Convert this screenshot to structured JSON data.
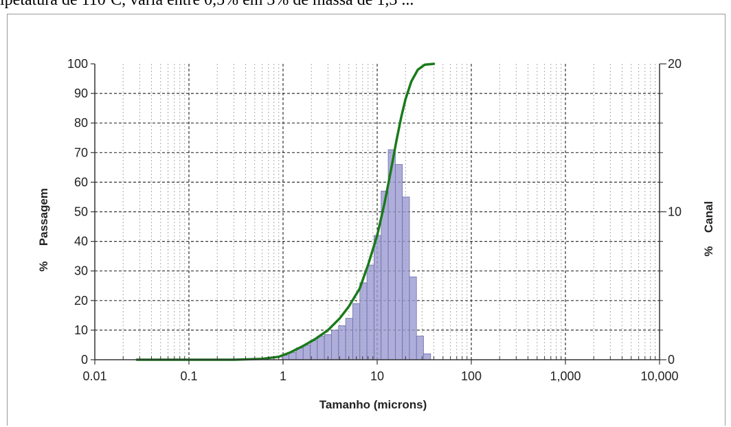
{
  "caption": "ipetatura de 110ºC, varia entre 0,5% em 3% de massa de 1,3 ...",
  "chart_data": {
    "type": "bar",
    "xscale": "log",
    "xlim": [
      0.01,
      10000
    ],
    "x_ticks": [
      "0.01",
      "0.1",
      "1",
      "10",
      "100",
      "1,000",
      "10,000"
    ],
    "xlabel": "Tamanho (microns)",
    "grid": true,
    "left_axis": {
      "label": "Passagem",
      "marker": "%",
      "marker_color": "#2a8a2a",
      "ylim": [
        0,
        100
      ],
      "ticks": [
        "0",
        "10",
        "20",
        "30",
        "40",
        "50",
        "60",
        "70",
        "80",
        "90",
        "100"
      ]
    },
    "right_axis": {
      "label": "Canal",
      "marker": "%",
      "marker_color": "#5a5aa8",
      "ylim": [
        0,
        20
      ],
      "ticks": [
        "0",
        "10",
        "20"
      ]
    },
    "series": [
      {
        "type": "bar",
        "axis": "right",
        "color": "#9a9ad0",
        "points": [
          {
            "x": 1.06,
            "y": 0.3
          },
          {
            "x": 1.26,
            "y": 0.5
          },
          {
            "x": 1.5,
            "y": 0.8
          },
          {
            "x": 1.78,
            "y": 1.0
          },
          {
            "x": 2.12,
            "y": 1.3
          },
          {
            "x": 2.52,
            "y": 1.6
          },
          {
            "x": 3.0,
            "y": 1.7
          },
          {
            "x": 3.56,
            "y": 2.0
          },
          {
            "x": 4.24,
            "y": 2.3
          },
          {
            "x": 5.04,
            "y": 2.8
          },
          {
            "x": 6.0,
            "y": 3.8
          },
          {
            "x": 7.14,
            "y": 5.2
          },
          {
            "x": 8.48,
            "y": 6.4
          },
          {
            "x": 10.1,
            "y": 8.4
          },
          {
            "x": 12.0,
            "y": 11.4
          },
          {
            "x": 14.3,
            "y": 14.2
          },
          {
            "x": 17.0,
            "y": 13.2
          },
          {
            "x": 20.2,
            "y": 11.0
          },
          {
            "x": 24.0,
            "y": 5.6
          },
          {
            "x": 28.5,
            "y": 1.6
          },
          {
            "x": 33.9,
            "y": 0.4
          }
        ]
      },
      {
        "type": "line",
        "axis": "left",
        "color": "#1a7a1a",
        "points": [
          {
            "x": 0.028,
            "y": 0
          },
          {
            "x": 0.1,
            "y": 0
          },
          {
            "x": 0.3,
            "y": 0
          },
          {
            "x": 0.6,
            "y": 0.3
          },
          {
            "x": 0.9,
            "y": 1
          },
          {
            "x": 1.2,
            "y": 2.5
          },
          {
            "x": 1.6,
            "y": 4.5
          },
          {
            "x": 2.2,
            "y": 7
          },
          {
            "x": 3.0,
            "y": 10
          },
          {
            "x": 4.0,
            "y": 14
          },
          {
            "x": 5.0,
            "y": 18
          },
          {
            "x": 6.5,
            "y": 24
          },
          {
            "x": 8.0,
            "y": 32
          },
          {
            "x": 10.0,
            "y": 42
          },
          {
            "x": 12.0,
            "y": 53
          },
          {
            "x": 14.0,
            "y": 64
          },
          {
            "x": 16.0,
            "y": 74
          },
          {
            "x": 18.0,
            "y": 82
          },
          {
            "x": 20.0,
            "y": 88
          },
          {
            "x": 23.0,
            "y": 94
          },
          {
            "x": 27.0,
            "y": 98
          },
          {
            "x": 32.0,
            "y": 99.7
          },
          {
            "x": 40.0,
            "y": 100
          }
        ]
      }
    ]
  }
}
